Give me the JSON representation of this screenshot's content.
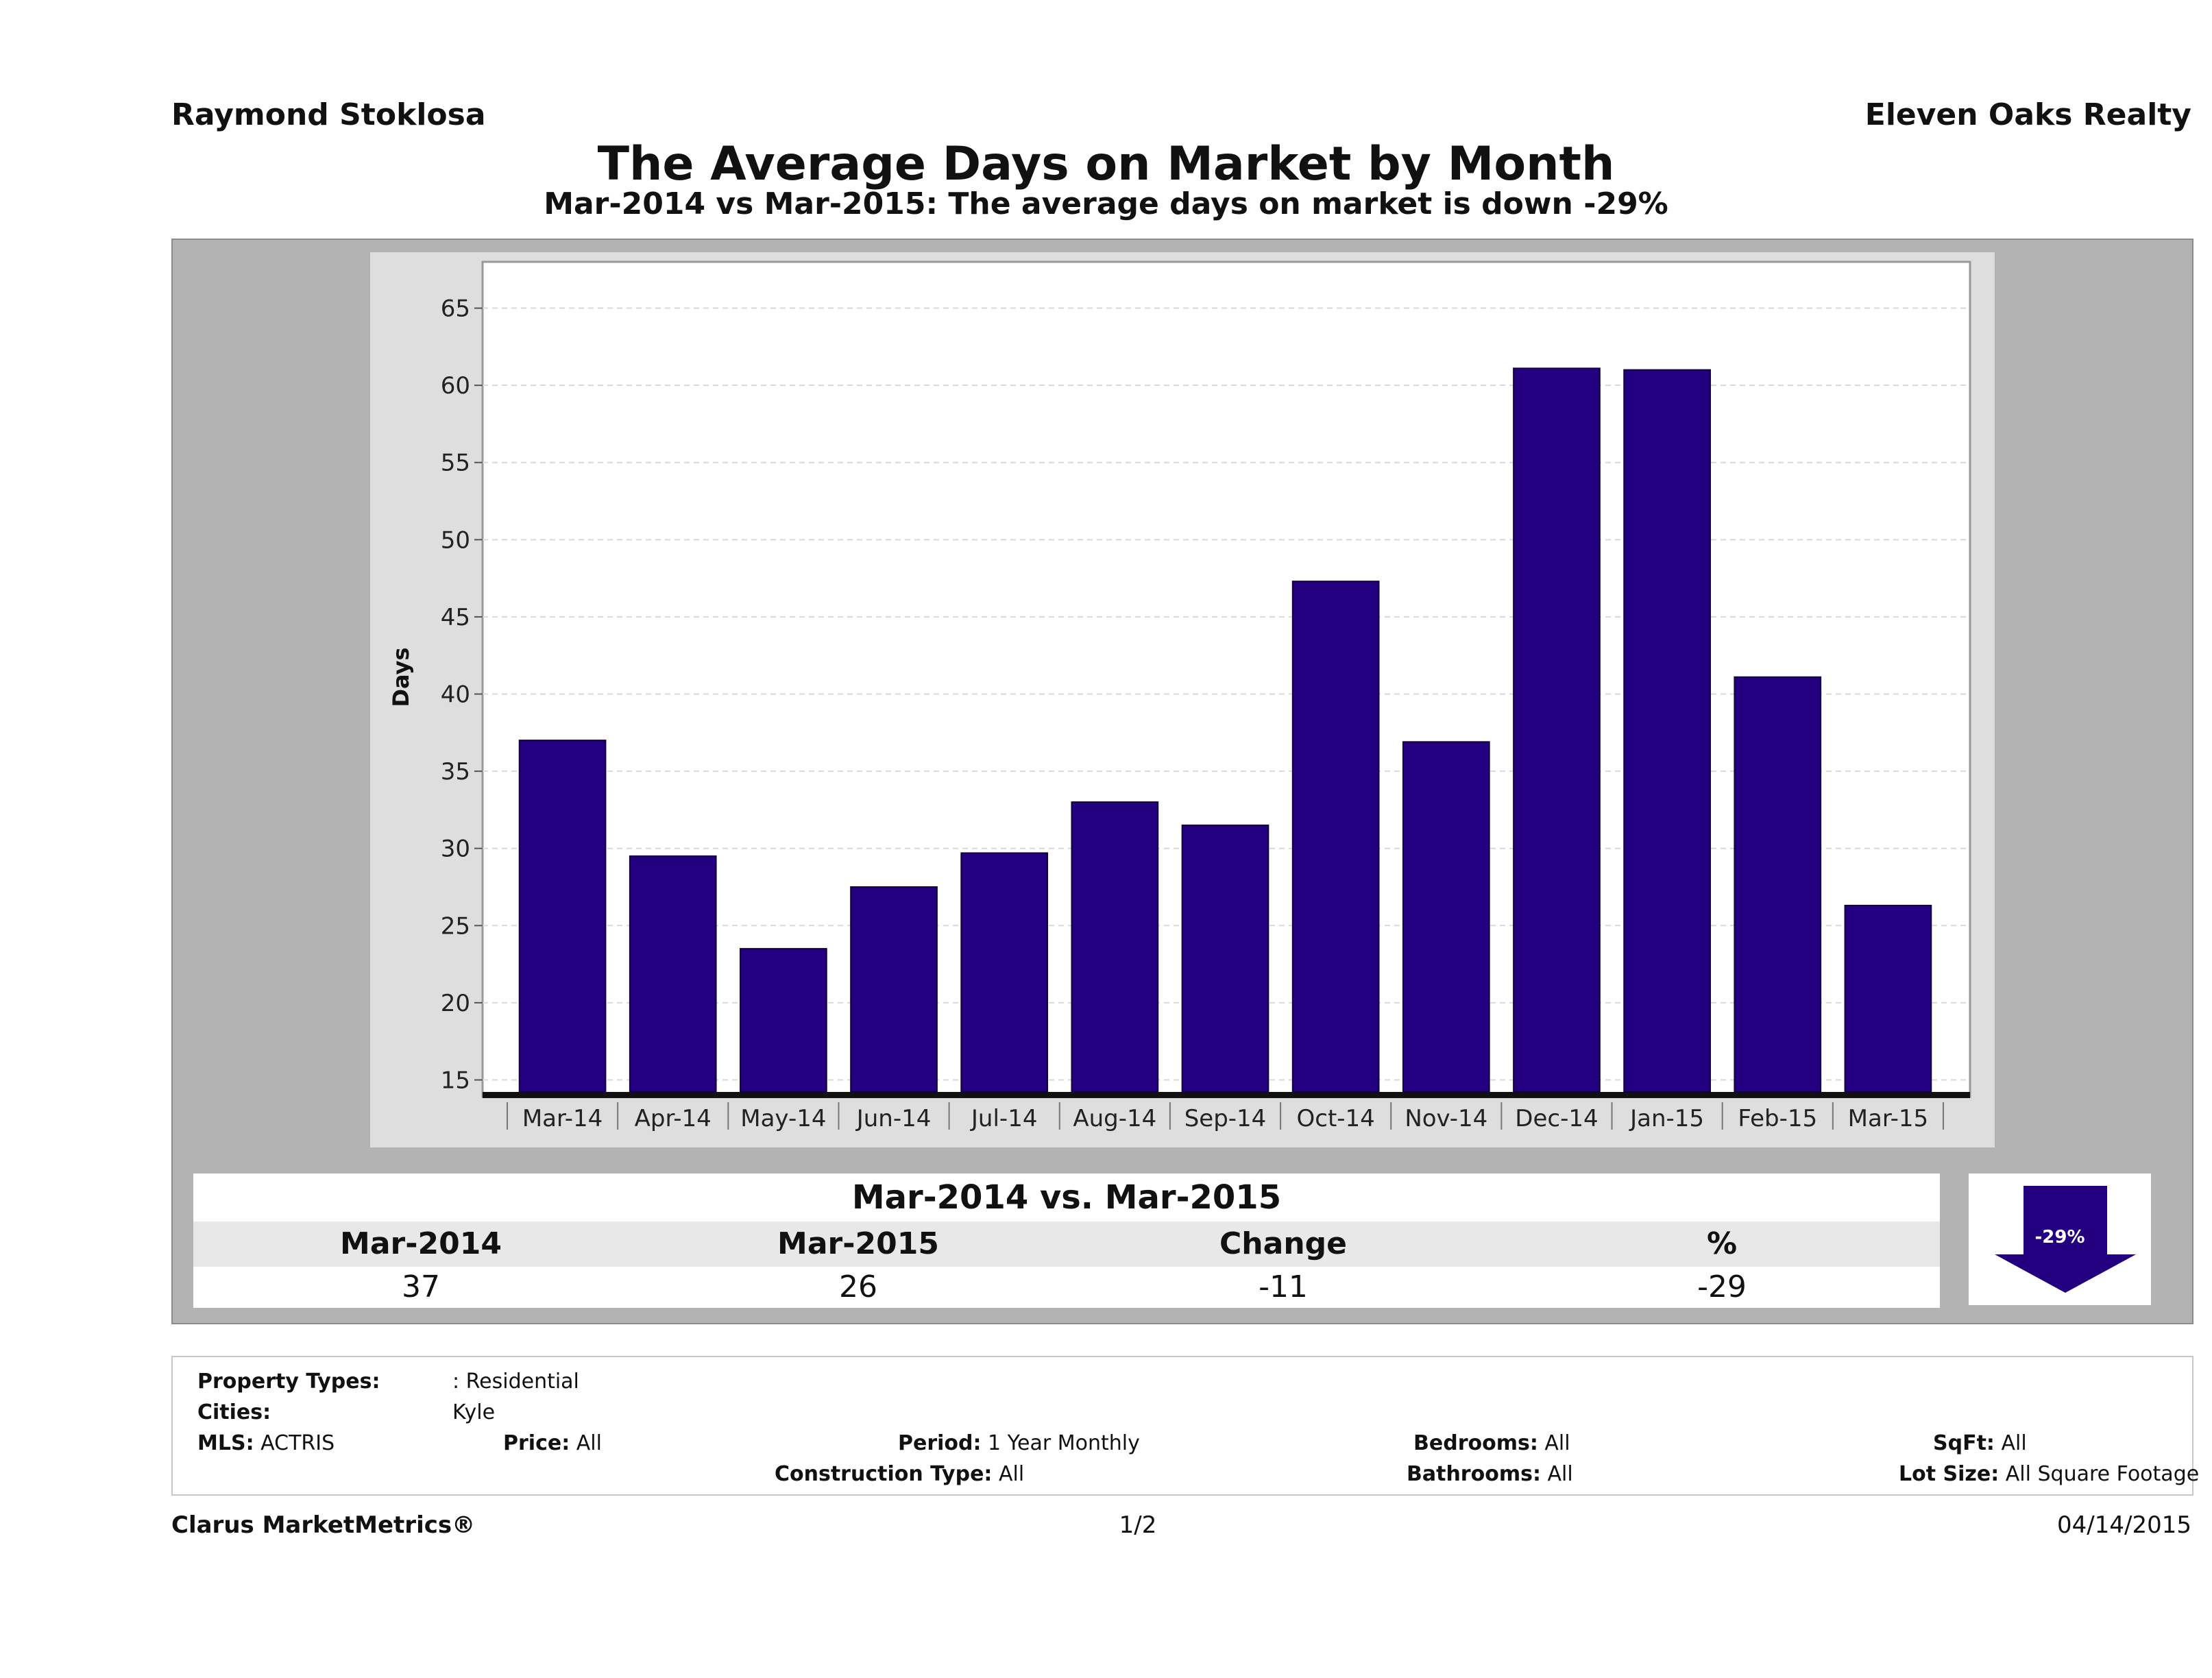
{
  "header": {
    "agent": "Raymond Stoklosa",
    "brokerage": "Eleven Oaks Realty",
    "title": "The Average Days on Market by Month",
    "subtitle": "Mar-2014 vs Mar-2015: The average days on market is down -29%"
  },
  "chart_data": {
    "type": "bar",
    "title": "The Average Days on Market by Month",
    "xlabel": "",
    "ylabel": "Days",
    "ylim": [
      14,
      68
    ],
    "yticks": [
      15,
      20,
      25,
      30,
      35,
      40,
      45,
      50,
      55,
      60,
      65
    ],
    "categories": [
      "Mar-14",
      "Apr-14",
      "May-14",
      "Jun-14",
      "Jul-14",
      "Aug-14",
      "Sep-14",
      "Oct-14",
      "Nov-14",
      "Dec-14",
      "Jan-15",
      "Feb-15",
      "Mar-15"
    ],
    "values": [
      37,
      29.5,
      23.5,
      27.5,
      29.7,
      33,
      31.5,
      47.3,
      36.9,
      61.1,
      61,
      41.1,
      26.3
    ],
    "bar_color": "#23007f",
    "grid": true,
    "legend": "none"
  },
  "comparison": {
    "title": "Mar-2014 vs. Mar-2015",
    "headers": [
      "Mar-2014",
      "Mar-2015",
      "Change",
      "%"
    ],
    "values": [
      "37",
      "26",
      "-11",
      "-29"
    ],
    "arrow_label": "-29%",
    "arrow_color": "#23007f"
  },
  "filters": {
    "property_types_label": "Property Types:",
    "property_types_value": ": Residential",
    "cities_label": "Cities:",
    "cities_value": "Kyle",
    "mls_label": "MLS:",
    "mls_value": "ACTRIS",
    "price_label": "Price:",
    "price_value": "All",
    "period_label": "Period:",
    "period_value": "1 Year Monthly",
    "construction_label": "Construction Type:",
    "construction_value": "All",
    "bedrooms_label": "Bedrooms:",
    "bedrooms_value": "All",
    "bathrooms_label": "Bathrooms:",
    "bathrooms_value": "All",
    "sqft_label": "SqFt:",
    "sqft_value": "All",
    "lot_label": "Lot Size:",
    "lot_value": "All Square Footage"
  },
  "footer": {
    "brand": "Clarus MarketMetrics®",
    "page": "1/2",
    "date": "04/14/2015"
  }
}
